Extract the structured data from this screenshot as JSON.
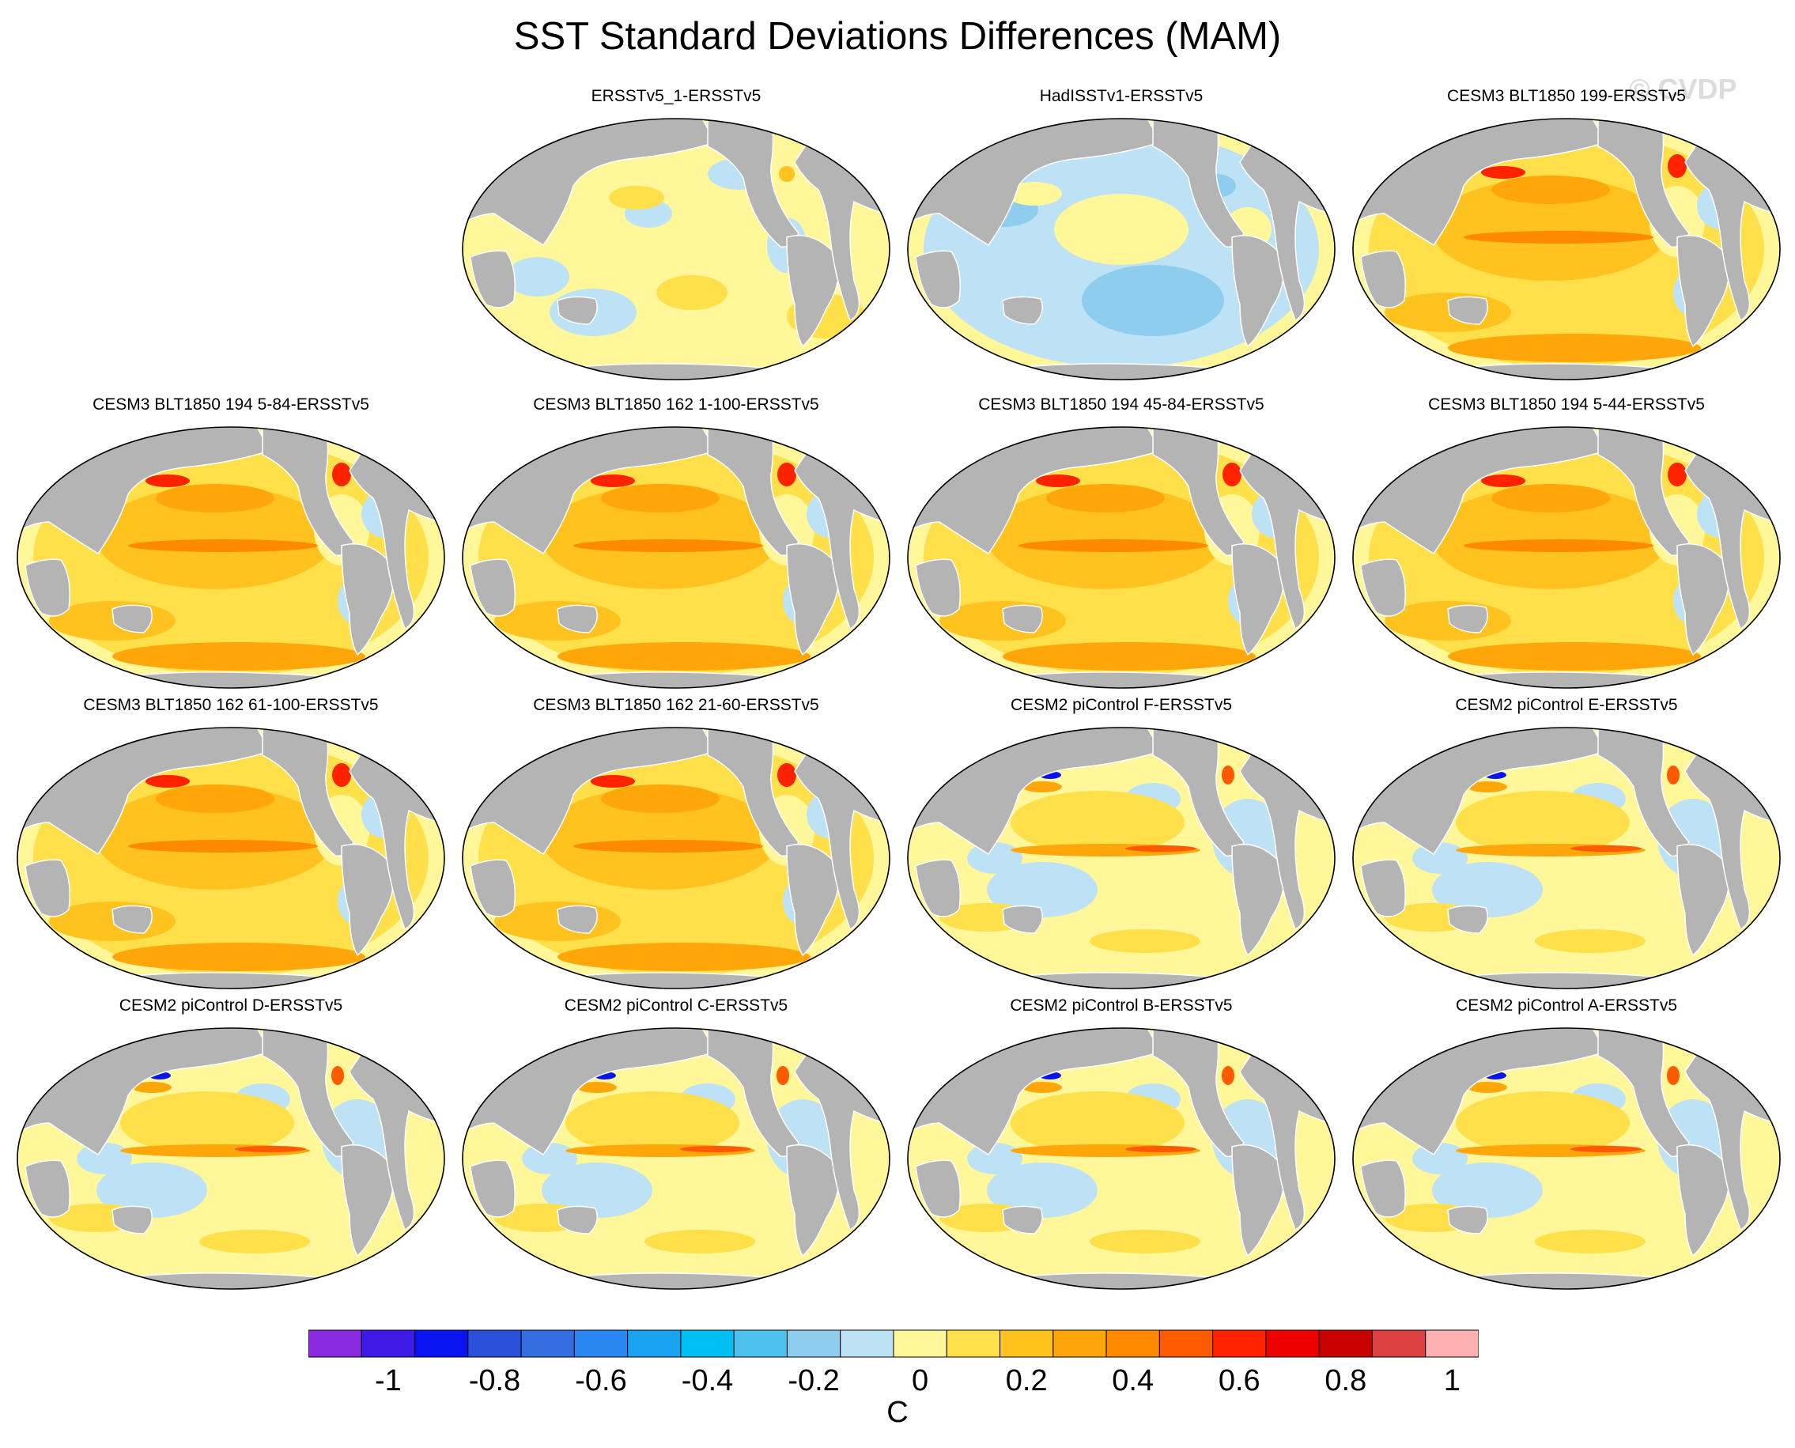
{
  "title": "SST Standard Deviations Differences (MAM)",
  "watermark": "© CVDP",
  "panels": [
    {
      "title": "ERSSTv5_1-ERSSTv5",
      "pattern": "e5"
    },
    {
      "title": "HadISSTv1-ERSSTv5",
      "pattern": "had"
    },
    {
      "title": "CESM3 BLT1850 199-ERSSTv5",
      "pattern": "cesm3"
    },
    {
      "title": "CESM3 BLT1850 194 5-84-ERSSTv5",
      "pattern": "cesm3"
    },
    {
      "title": "CESM3 BLT1850 162 1-100-ERSSTv5",
      "pattern": "cesm3"
    },
    {
      "title": "CESM3 BLT1850 194 45-84-ERSSTv5",
      "pattern": "cesm3"
    },
    {
      "title": "CESM3 BLT1850 194 5-44-ERSSTv5",
      "pattern": "cesm3"
    },
    {
      "title": "CESM3 BLT1850 162 61-100-ERSSTv5",
      "pattern": "cesm3"
    },
    {
      "title": "CESM3 BLT1850 162 21-60-ERSSTv5",
      "pattern": "cesm3"
    },
    {
      "title": "CESM2 piControl F-ERSSTv5",
      "pattern": "cesm2"
    },
    {
      "title": "CESM2 piControl E-ERSSTv5",
      "pattern": "cesm2"
    },
    {
      "title": "CESM2 piControl D-ERSSTv5",
      "pattern": "cesm2"
    },
    {
      "title": "CESM2 piControl C-ERSSTv5",
      "pattern": "cesm2"
    },
    {
      "title": "CESM2 piControl B-ERSSTv5",
      "pattern": "cesm2"
    },
    {
      "title": "CESM2 piControl A-ERSSTv5",
      "pattern": "cesm2"
    }
  ],
  "colorbar": {
    "colors": [
      "#8a2be2",
      "#3d1ae6",
      "#0a14f0",
      "#2a4fd8",
      "#336de0",
      "#2a87f2",
      "#1aa3f0",
      "#00bff2",
      "#4ec2ee",
      "#8fcdee",
      "#bde2f5",
      "#fff79a",
      "#ffe04a",
      "#ffc21f",
      "#ffa60a",
      "#ff8a00",
      "#ff5a00",
      "#ff2200",
      "#ee0000",
      "#c80000",
      "#dd4040",
      "#ffb0b0"
    ],
    "tick_labels": [
      "-1",
      "-0.8",
      "-0.6",
      "-0.4",
      "-0.2",
      "0",
      "0.2",
      "0.4",
      "0.6",
      "0.8",
      "1"
    ],
    "unit": "C"
  },
  "style": {
    "land_color": "#b4b4b4",
    "base_ocean": "#fff79a"
  }
}
